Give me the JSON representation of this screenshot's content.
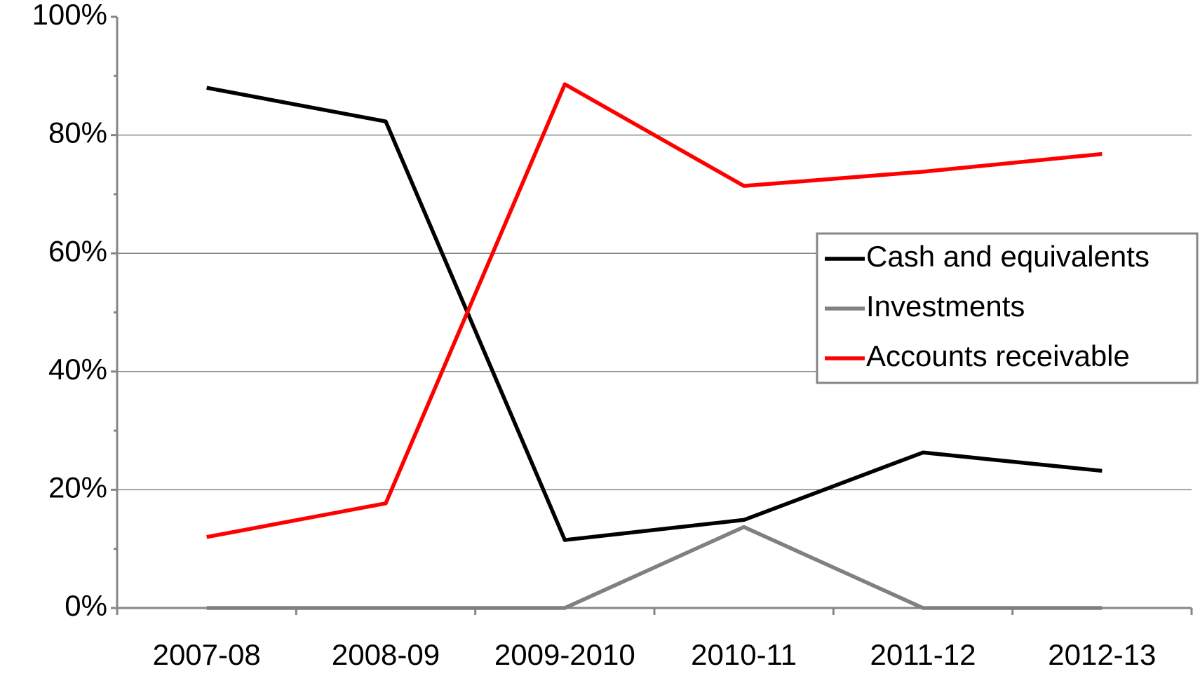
{
  "chart_data": {
    "type": "line",
    "categories": [
      "2007-08",
      "2008-09",
      "2009-2010",
      "2010-11",
      "2011-12",
      "2012-13"
    ],
    "series": [
      {
        "name": "Cash and equivalents",
        "color": "#000000",
        "values": [
          88,
          82.3,
          11.5,
          14.9,
          26.3,
          23.2
        ]
      },
      {
        "name": "Investments",
        "color": "#808080",
        "values": [
          0,
          0,
          0,
          13.7,
          0,
          0
        ]
      },
      {
        "name": "Accounts receivable",
        "color": "#ff0000",
        "values": [
          12,
          17.7,
          88.6,
          71.4,
          73.8,
          76.8
        ]
      }
    ],
    "ylim": [
      0,
      100
    ],
    "yticks": [
      {
        "value": 0,
        "label": "0%"
      },
      {
        "value": 20,
        "label": "20%"
      },
      {
        "value": 40,
        "label": "40%"
      },
      {
        "value": 60,
        "label": "60%"
      },
      {
        "value": 80,
        "label": "80%"
      },
      {
        "value": 100,
        "label": "100%"
      }
    ],
    "grid": true,
    "legend": "right"
  }
}
